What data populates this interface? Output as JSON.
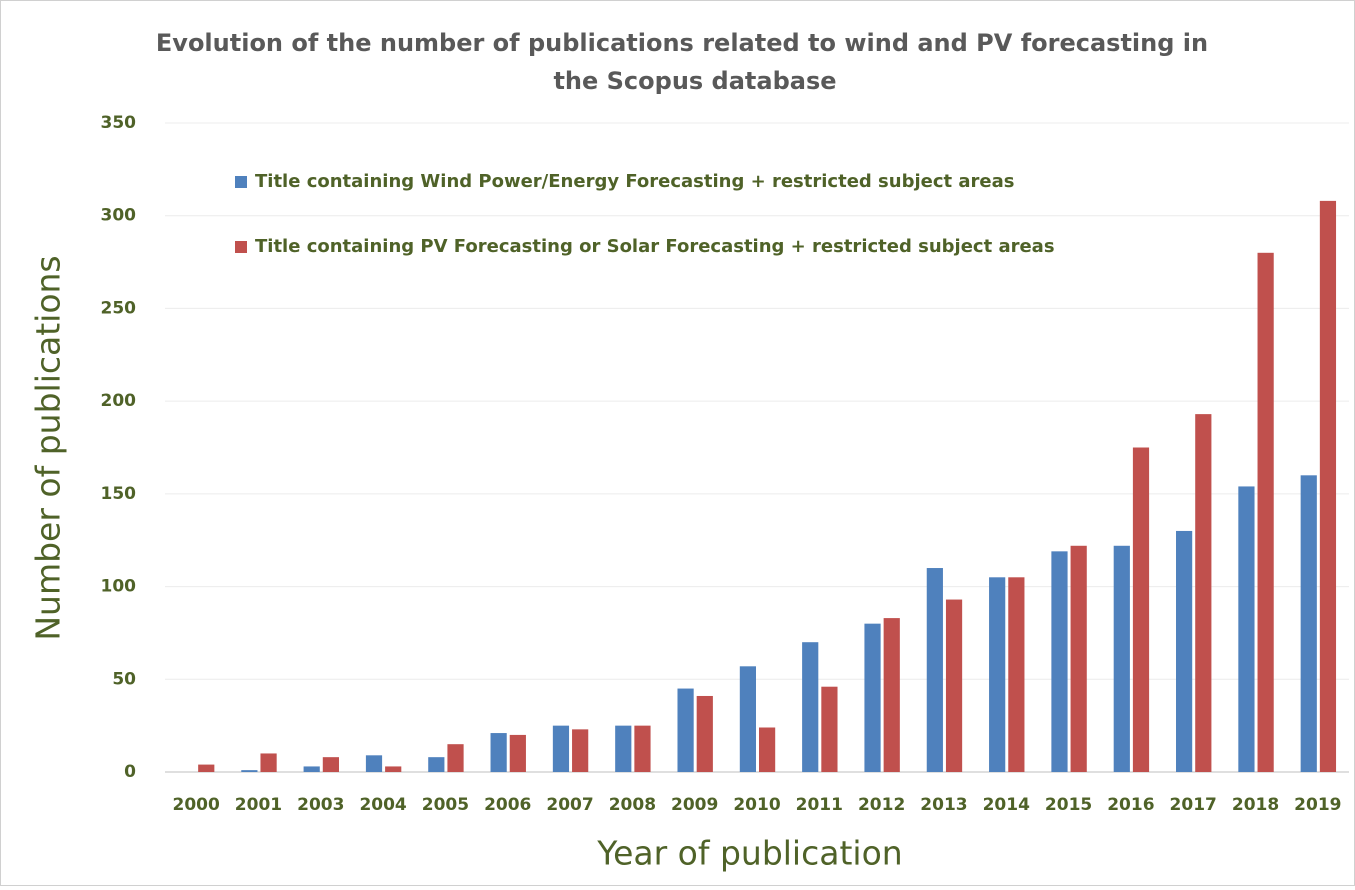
{
  "chart_data": {
    "type": "bar",
    "title": [
      "Evolution of the number of publications related to wind and PV forecasting in",
      "the Scopus database"
    ],
    "x_label": "Year of publication",
    "y_label": "Number of publications",
    "categories": [
      "2000",
      "2001",
      "2003",
      "2004",
      "2005",
      "2006",
      "2007",
      "2008",
      "2009",
      "2010",
      "2011",
      "2012",
      "2013",
      "2014",
      "2015",
      "2016",
      "2017",
      "2018",
      "2019"
    ],
    "series": [
      {
        "name": "Title containing Wind Power/Energy Forecasting + restricted subject areas",
        "color": "#4f81bd",
        "values": [
          0,
          1,
          3,
          9,
          8,
          21,
          25,
          25,
          45,
          57,
          70,
          80,
          110,
          105,
          119,
          122,
          130,
          154,
          160
        ]
      },
      {
        "name": "Title containing PV Forecasting or Solar Forecasting + restricted subject areas",
        "color": "#c0504d",
        "values": [
          4,
          10,
          8,
          3,
          15,
          20,
          23,
          25,
          41,
          24,
          46,
          83,
          93,
          105,
          122,
          175,
          193,
          280,
          308
        ]
      }
    ],
    "ylim": [
      0,
      350
    ],
    "yticks": [
      0,
      50,
      100,
      150,
      200,
      250,
      300,
      350
    ],
    "grid": true,
    "legend": "upper left"
  }
}
